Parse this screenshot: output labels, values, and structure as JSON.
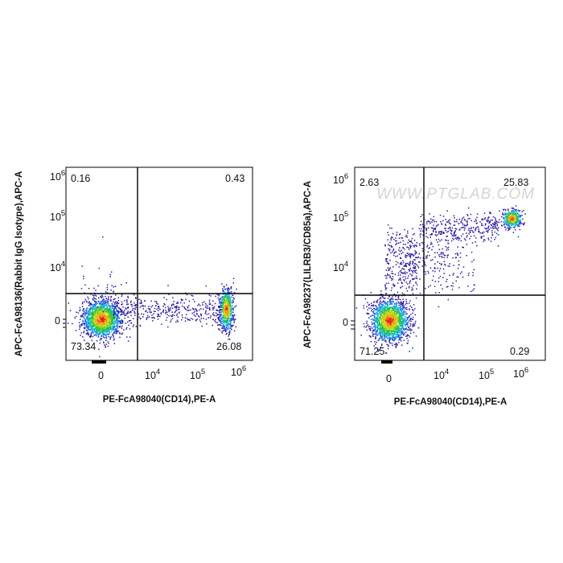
{
  "chart_data": [
    {
      "type": "scatter",
      "xlabel": "PE-FcA98040(CD14),PE-A",
      "ylabel": "APC-FcA98136(Rabbit IgG Isotype),APC-A",
      "x_scale": "biexponential",
      "y_scale": "biexponential",
      "xlim": [
        -2000,
        1500000
      ],
      "ylim": [
        -3000,
        1500000
      ],
      "x_ticks": [
        "0",
        "10^4",
        "10^5",
        "10^6"
      ],
      "y_ticks": [
        "0",
        "10^4",
        "10^5",
        "10^6"
      ],
      "gates": {
        "x": 3500,
        "y": 3000
      },
      "quadrants": {
        "upper_left": "0.16",
        "upper_right": "0.43",
        "lower_left": "73.34",
        "lower_right": "26.08"
      },
      "populations": [
        {
          "x_center": 0,
          "y_center": 0,
          "percent": 73.34
        },
        {
          "x_center": 450000,
          "y_center": 1000,
          "percent": 26.08
        }
      ],
      "watermark": "",
      "grid": false
    },
    {
      "type": "scatter",
      "xlabel": "PE-FcA98040(CD14),PE-A",
      "ylabel": "APC-FcA98237(LILRB3/CD85a),APC-A",
      "x_scale": "biexponential",
      "y_scale": "biexponential",
      "xlim": [
        -2000,
        1500000
      ],
      "ylim": [
        -3000,
        1500000
      ],
      "x_ticks": [
        "0",
        "10^4",
        "10^5",
        "10^6"
      ],
      "y_ticks": [
        "0",
        "10^4",
        "10^5",
        "10^6"
      ],
      "gates": {
        "x": 3500,
        "y": 2500
      },
      "quadrants": {
        "upper_left": "2.63",
        "upper_right": "25.83",
        "lower_left": "71.25",
        "lower_right": "0.29"
      },
      "populations": [
        {
          "x_center": 0,
          "y_center": 0,
          "percent": 71.25
        },
        {
          "x_center": 500000,
          "y_center": 110000,
          "percent": 25.83
        }
      ],
      "watermark": "WWW.PTGLAB.COM",
      "grid": false
    }
  ]
}
